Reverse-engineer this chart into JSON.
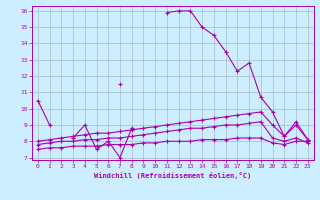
{
  "bg_color": "#cceeff",
  "line_color": "#aa00aa",
  "grid_color": "#aabbcc",
  "xlabel": "Windchill (Refroidissement éolien,°C)",
  "x_values": [
    0,
    1,
    2,
    3,
    4,
    5,
    6,
    7,
    8,
    9,
    10,
    11,
    12,
    13,
    14,
    15,
    16,
    17,
    18,
    19,
    20,
    21,
    22,
    23
  ],
  "line_peak": [
    null,
    null,
    null,
    8.2,
    null,
    null,
    null,
    11.5,
    null,
    null,
    null,
    15.9,
    16.0,
    16.0,
    15.0,
    14.5,
    13.5,
    12.3,
    12.8,
    10.7,
    9.8,
    8.3,
    9.2,
    8.1
  ],
  "line_zigzag": [
    10.5,
    9.0,
    null,
    8.2,
    9.0,
    7.5,
    8.0,
    7.0,
    8.8,
    null,
    null,
    null,
    null,
    null,
    null,
    null,
    null,
    null,
    null,
    null,
    null,
    null,
    null,
    null
  ],
  "line_flat1": [
    8.0,
    8.1,
    8.2,
    8.3,
    8.4,
    8.5,
    8.5,
    8.6,
    8.7,
    8.8,
    8.9,
    9.0,
    9.1,
    9.2,
    9.3,
    9.4,
    9.5,
    9.6,
    9.7,
    9.8,
    9.0,
    8.3,
    9.0,
    8.1
  ],
  "line_flat2": [
    7.8,
    7.9,
    8.0,
    8.0,
    8.1,
    8.1,
    8.2,
    8.2,
    8.3,
    8.4,
    8.5,
    8.6,
    8.7,
    8.8,
    8.8,
    8.9,
    9.0,
    9.0,
    9.1,
    9.2,
    8.2,
    8.0,
    8.2,
    7.9
  ],
  "line_flat3": [
    7.5,
    7.6,
    7.6,
    7.7,
    7.7,
    7.7,
    7.8,
    7.8,
    7.8,
    7.9,
    7.9,
    8.0,
    8.0,
    8.0,
    8.1,
    8.1,
    8.1,
    8.2,
    8.2,
    8.2,
    7.9,
    7.8,
    8.0,
    8.0
  ],
  "ylim": [
    7,
    16
  ],
  "xlim": [
    0,
    23
  ],
  "yticks": [
    7,
    8,
    9,
    10,
    11,
    12,
    13,
    14,
    15,
    16
  ]
}
